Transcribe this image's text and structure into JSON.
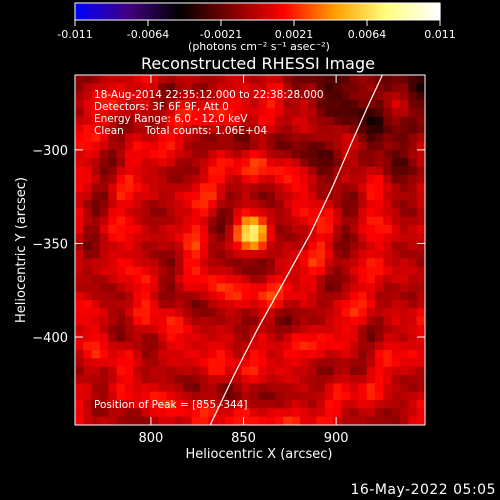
{
  "chart_data": [
    {
      "type": "colorbar",
      "ticks": [
        "-0.011",
        "-0.0064",
        "-0.0021",
        "0.0021",
        "0.0064",
        "0.011"
      ],
      "range": [
        -0.011,
        0.011
      ],
      "unit_label": "(photons cm⁻² s⁻¹ asec⁻²)",
      "colormap": [
        "#0000ff",
        "#400080",
        "#000000",
        "#800000",
        "#ff0000",
        "#ffa000",
        "#ffff80",
        "#ffffff"
      ]
    },
    {
      "type": "heatmap",
      "title": "Reconstructed RHESSI Image",
      "xlabel": "Heliocentric X (arcsec)",
      "ylabel": "Heliocentric Y (arcsec)",
      "xlim": [
        759,
        948
      ],
      "ylim": [
        -447,
        -260
      ],
      "xticks": [
        800,
        850,
        900
      ],
      "yticks": [
        -300,
        -350,
        -400
      ],
      "grid": false,
      "annotations": [
        "18-Aug-2014 22:35:12.000 to 22:38:28.000",
        "Detectors: 3F 6F 9F, Att 0",
        "Energy Range: 6.0 - 12.0 keV",
        "Clean",
        "Total counts: 1.06E+04"
      ],
      "peak_label": "Position of Peak = [855,-344]",
      "peak": {
        "x": 855,
        "y": -344
      },
      "limb_curve": [
        [
          832,
          -447
        ],
        [
          845,
          -420
        ],
        [
          858,
          -395
        ],
        [
          872,
          -370
        ],
        [
          886,
          -345
        ],
        [
          898,
          -320
        ],
        [
          908,
          -297
        ],
        [
          917,
          -277
        ],
        [
          925,
          -260
        ]
      ]
    }
  ],
  "footer": {
    "date": "16-May-2022 05:05"
  }
}
